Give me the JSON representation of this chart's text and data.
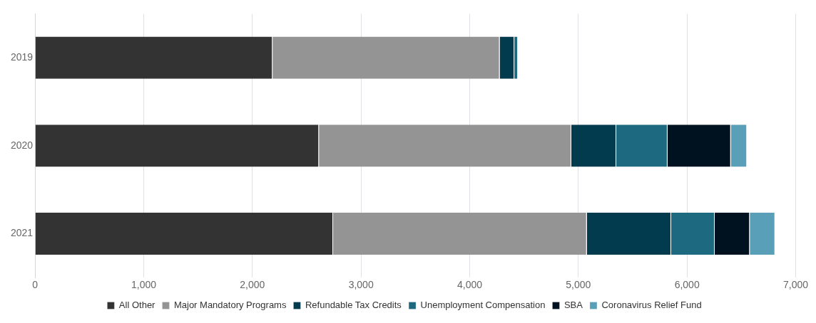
{
  "chart_data": {
    "type": "bar",
    "orientation": "horizontal",
    "stacked": true,
    "categories": [
      "2019",
      "2020",
      "2021"
    ],
    "series": [
      {
        "name": "All Other",
        "color": "#333333",
        "values": [
          2186,
          2613,
          2743
        ]
      },
      {
        "name": "Major Mandatory Programs",
        "color": "#949494",
        "values": [
          2090,
          2322,
          2335
        ]
      },
      {
        "name": "Refundable Tax Credits",
        "color": "#023a4e",
        "values": [
          135,
          414,
          776
        ]
      },
      {
        "name": "Unemployment Compensation",
        "color": "#1d6a80",
        "values": [
          33,
          472,
          401
        ]
      },
      {
        "name": "SBA",
        "color": "#001120",
        "values": [
          0,
          583,
          323
        ]
      },
      {
        "name": "Coronavirus Relief Fund",
        "color": "#5a9fb8",
        "values": [
          0,
          148,
          233
        ]
      }
    ],
    "xlim": [
      0,
      7000
    ],
    "xticks": [
      {
        "value": 0,
        "label": "0"
      },
      {
        "value": 1000,
        "label": "1,000"
      },
      {
        "value": 2000,
        "label": "2,000"
      },
      {
        "value": 3000,
        "label": "3,000"
      },
      {
        "value": 4000,
        "label": "4,000"
      },
      {
        "value": 5000,
        "label": "5,000"
      },
      {
        "value": 6000,
        "label": "6,000"
      },
      {
        "value": 7000,
        "label": "7,000"
      }
    ],
    "grid": "x",
    "legend": "bottom"
  }
}
